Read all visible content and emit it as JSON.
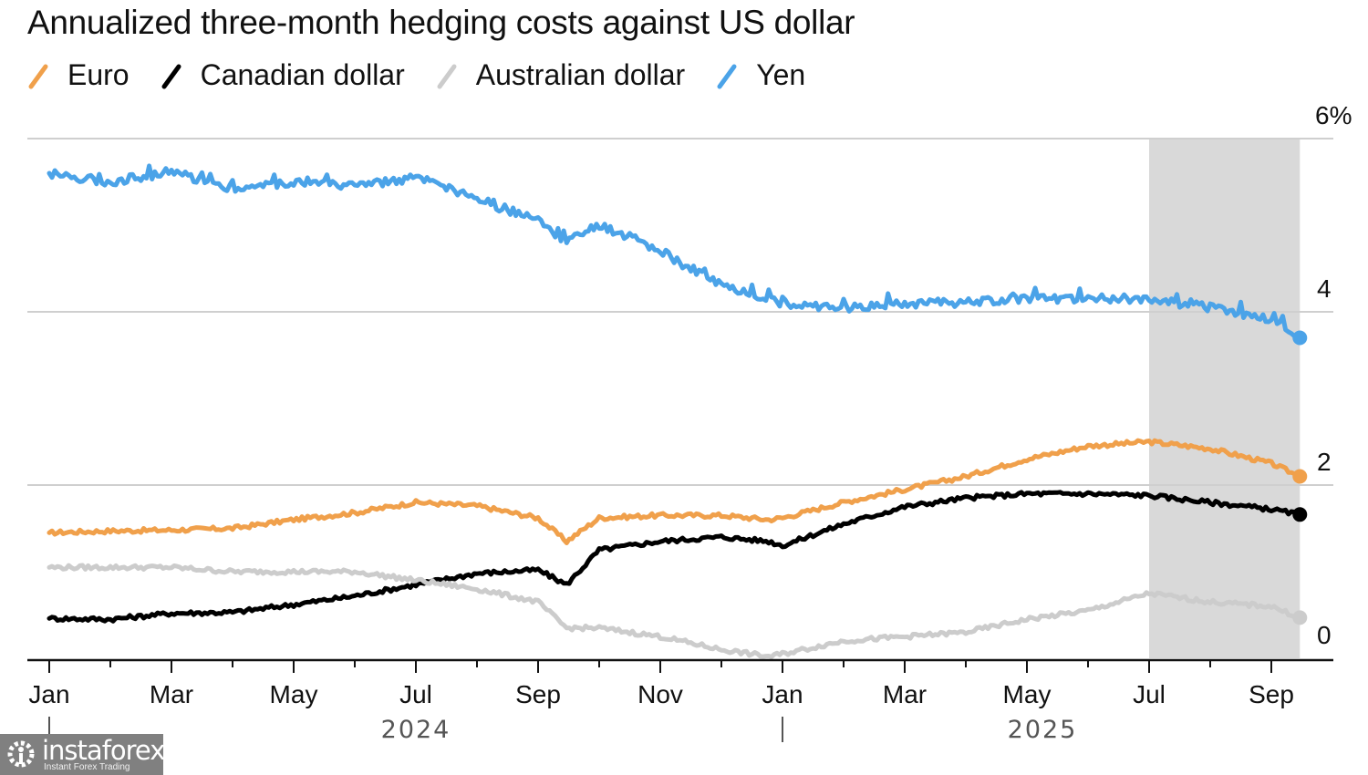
{
  "chart_data": {
    "type": "line",
    "title": "Annualized three-month hedging costs against US dollar",
    "xlabel": "",
    "ylabel": "",
    "y_unit_suffix": "%",
    "ylim": [
      0,
      6
    ],
    "yticks": [
      0,
      2,
      4,
      6
    ],
    "ytick_labels": [
      "0",
      "2",
      "4",
      "6%"
    ],
    "xlim": [
      "2024-01-01",
      "2025-09-20"
    ],
    "x_month_ticks": [
      "Jan",
      "Mar",
      "May",
      "Jul",
      "Sep",
      "Nov",
      "Jan",
      "Mar",
      "May",
      "Jul",
      "Sep"
    ],
    "x_year_labels": [
      "2024",
      "2025"
    ],
    "grid": true,
    "legend_position": "top-left",
    "highlight_band": {
      "start": "2025-07-01",
      "end": "2025-09-15",
      "color": "#d9d9d9"
    },
    "x": [
      "2024-01-01",
      "2024-02-01",
      "2024-03-01",
      "2024-04-01",
      "2024-05-01",
      "2024-06-01",
      "2024-07-01",
      "2024-08-01",
      "2024-09-01",
      "2024-09-15",
      "2024-10-01",
      "2024-11-01",
      "2024-12-01",
      "2024-12-25",
      "2025-01-01",
      "2025-02-01",
      "2025-03-01",
      "2025-04-01",
      "2025-05-01",
      "2025-06-01",
      "2025-07-01",
      "2025-08-01",
      "2025-09-01",
      "2025-09-15"
    ],
    "series": [
      {
        "name": "Euro",
        "color": "#f0a04b",
        "values": [
          1.45,
          1.47,
          1.48,
          1.5,
          1.6,
          1.68,
          1.8,
          1.76,
          1.62,
          1.35,
          1.62,
          1.65,
          1.65,
          1.6,
          1.62,
          1.8,
          1.95,
          2.1,
          2.3,
          2.45,
          2.5,
          2.42,
          2.25,
          2.1
        ]
      },
      {
        "name": "Canadian dollar",
        "color": "#000000",
        "values": [
          0.46,
          0.45,
          0.52,
          0.53,
          0.62,
          0.72,
          0.85,
          0.98,
          1.02,
          0.85,
          1.25,
          1.35,
          1.4,
          1.35,
          1.3,
          1.55,
          1.75,
          1.85,
          1.9,
          1.9,
          1.88,
          1.8,
          1.72,
          1.66
        ]
      },
      {
        "name": "Australian dollar",
        "color": "#cccccc",
        "values": [
          1.05,
          1.05,
          1.05,
          1.0,
          1.0,
          1.0,
          0.9,
          0.8,
          0.65,
          0.35,
          0.35,
          0.25,
          0.1,
          0.02,
          0.05,
          0.2,
          0.25,
          0.3,
          0.45,
          0.55,
          0.75,
          0.65,
          0.6,
          0.47
        ]
      },
      {
        "name": "Yen",
        "color": "#4ba3e8",
        "values": [
          5.6,
          5.5,
          5.62,
          5.42,
          5.5,
          5.45,
          5.55,
          5.3,
          5.05,
          4.8,
          5.0,
          4.7,
          4.3,
          4.15,
          4.1,
          4.05,
          4.1,
          4.1,
          4.15,
          4.15,
          4.15,
          4.05,
          3.9,
          3.7
        ]
      }
    ]
  },
  "legend": [
    {
      "label": "Euro",
      "color": "#f0a04b"
    },
    {
      "label": "Canadian dollar",
      "color": "#000000"
    },
    {
      "label": "Australian dollar",
      "color": "#cccccc"
    },
    {
      "label": "Yen",
      "color": "#4ba3e8"
    }
  ],
  "watermark": {
    "name": "instaforex",
    "tagline": "Instant Forex Trading"
  }
}
